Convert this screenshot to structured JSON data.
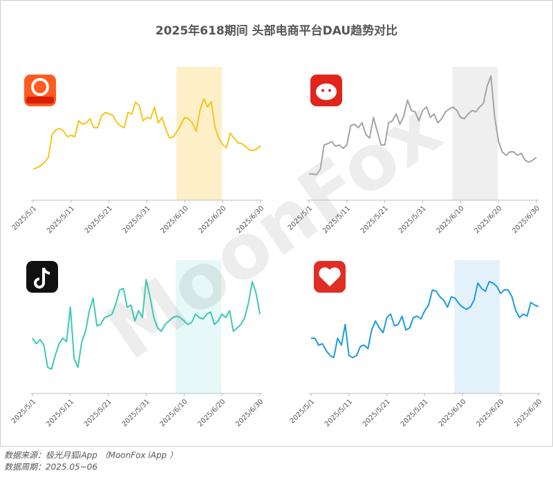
{
  "title": "2025年618期间 头部电商平台DAU趋势对比",
  "watermark": "MoonFox",
  "source": [
    "数据来源：极光月狐iApp （MoonFox iApp ）",
    "数据周期：2025.05~06"
  ],
  "chart_data": [
    {
      "type": "line",
      "color": "#f5c518",
      "band_color": "#fdefc8",
      "ylim": [
        0,
        200
      ],
      "categories": [
        "2025/5/1",
        null,
        null,
        null,
        null,
        null,
        null,
        null,
        null,
        null,
        "2025/5/11",
        null,
        null,
        null,
        null,
        null,
        null,
        null,
        null,
        null,
        "2025/5/21",
        null,
        null,
        null,
        null,
        null,
        null,
        null,
        null,
        null,
        "2025/5/31",
        null,
        null,
        null,
        null,
        null,
        null,
        null,
        null,
        null,
        "2025/6/10",
        null,
        null,
        null,
        null,
        null,
        null,
        null,
        null,
        null,
        "2025/6/20",
        null,
        null,
        null,
        null,
        null,
        null,
        null,
        null,
        null,
        "2025/6/30"
      ],
      "values": [
        45,
        47,
        50,
        55,
        62,
        95,
        102,
        104,
        100,
        92,
        94,
        92,
        115,
        110,
        112,
        118,
        105,
        105,
        122,
        127,
        125,
        123,
        113,
        108,
        105,
        127,
        125,
        142,
        137,
        115,
        120,
        118,
        135,
        112,
        120,
        103,
        90,
        92,
        100,
        110,
        120,
        118,
        112,
        100,
        130,
        147,
        135,
        143,
        105,
        90,
        80,
        76,
        97,
        90,
        83,
        82,
        78,
        73,
        72,
        74,
        79
      ]
    },
    {
      "type": "line",
      "color": "#a3a3a3",
      "band_color": "#efefef",
      "ylim": [
        0,
        200
      ],
      "categories": [
        "2025/5/1",
        null,
        null,
        null,
        null,
        null,
        null,
        null,
        null,
        null,
        "2025/5/11",
        null,
        null,
        null,
        null,
        null,
        null,
        null,
        null,
        null,
        "2025/5/21",
        null,
        null,
        null,
        null,
        null,
        null,
        null,
        null,
        null,
        "2025/5/31",
        null,
        null,
        null,
        null,
        null,
        null,
        null,
        null,
        null,
        "2025/6/10",
        null,
        null,
        null,
        null,
        null,
        null,
        null,
        null,
        null,
        "2025/6/20",
        null,
        null,
        null,
        null,
        null,
        null,
        null,
        null,
        null,
        "2025/6/30"
      ],
      "values": [
        38,
        38,
        37,
        45,
        80,
        82,
        85,
        78,
        80,
        75,
        80,
        108,
        110,
        105,
        112,
        95,
        90,
        120,
        100,
        80,
        80,
        112,
        115,
        125,
        110,
        122,
        145,
        130,
        128,
        115,
        130,
        135,
        120,
        125,
        112,
        118,
        128,
        132,
        135,
        130,
        120,
        118,
        125,
        130,
        128,
        135,
        140,
        165,
        180,
        120,
        85,
        70,
        65,
        70,
        70,
        65,
        68,
        58,
        55,
        58,
        62
      ]
    },
    {
      "type": "line",
      "color": "#3cc8b4",
      "band_color": "#e6f8f8",
      "ylim": [
        0,
        200
      ],
      "categories": [
        "2025/5/1",
        null,
        null,
        null,
        null,
        null,
        null,
        null,
        null,
        null,
        "2025/5/11",
        null,
        null,
        null,
        null,
        null,
        null,
        null,
        null,
        null,
        "2025/5/21",
        null,
        null,
        null,
        null,
        null,
        null,
        null,
        null,
        null,
        "2025/5/31",
        null,
        null,
        null,
        null,
        null,
        null,
        null,
        null,
        null,
        "2025/6/10",
        null,
        null,
        null,
        null,
        null,
        null,
        null,
        null,
        null,
        "2025/6/20",
        null,
        null,
        null,
        null,
        null,
        null,
        null,
        null,
        null,
        "2025/6/30"
      ],
      "values": [
        80,
        72,
        78,
        70,
        38,
        35,
        55,
        72,
        80,
        75,
        125,
        50,
        38,
        75,
        90,
        120,
        138,
        98,
        100,
        110,
        112,
        115,
        130,
        150,
        152,
        125,
        128,
        105,
        120,
        110,
        165,
        140,
        110,
        95,
        90,
        100,
        105,
        110,
        112,
        110,
        105,
        100,
        103,
        115,
        110,
        108,
        115,
        118,
        100,
        105,
        115,
        110,
        120,
        90,
        95,
        100,
        110,
        132,
        162,
        145,
        115
      ]
    },
    {
      "type": "line",
      "color": "#1a9be0",
      "band_color": "#e3f1fb",
      "ylim": [
        0,
        200
      ],
      "categories": [
        "2025/5/1",
        null,
        null,
        null,
        null,
        null,
        null,
        null,
        null,
        null,
        "2025/5/11",
        null,
        null,
        null,
        null,
        null,
        null,
        null,
        null,
        null,
        "2025/5/21",
        null,
        null,
        null,
        null,
        null,
        null,
        null,
        null,
        null,
        "2025/5/31",
        null,
        null,
        null,
        null,
        null,
        null,
        null,
        null,
        null,
        "2025/6/10",
        null,
        null,
        null,
        null,
        null,
        null,
        null,
        null,
        null,
        "2025/6/20",
        null,
        null,
        null,
        null,
        null,
        null,
        null,
        null,
        null,
        "2025/6/30"
      ],
      "values": [
        80,
        80,
        70,
        72,
        62,
        55,
        52,
        80,
        70,
        100,
        55,
        52,
        55,
        68,
        70,
        65,
        92,
        105,
        95,
        88,
        110,
        115,
        98,
        100,
        112,
        92,
        95,
        110,
        112,
        108,
        120,
        128,
        150,
        148,
        140,
        135,
        125,
        140,
        138,
        130,
        125,
        122,
        125,
        135,
        160,
        152,
        148,
        162,
        160,
        155,
        145,
        150,
        150,
        140,
        120,
        110,
        115,
        112,
        132,
        128,
        126
      ]
    }
  ]
}
